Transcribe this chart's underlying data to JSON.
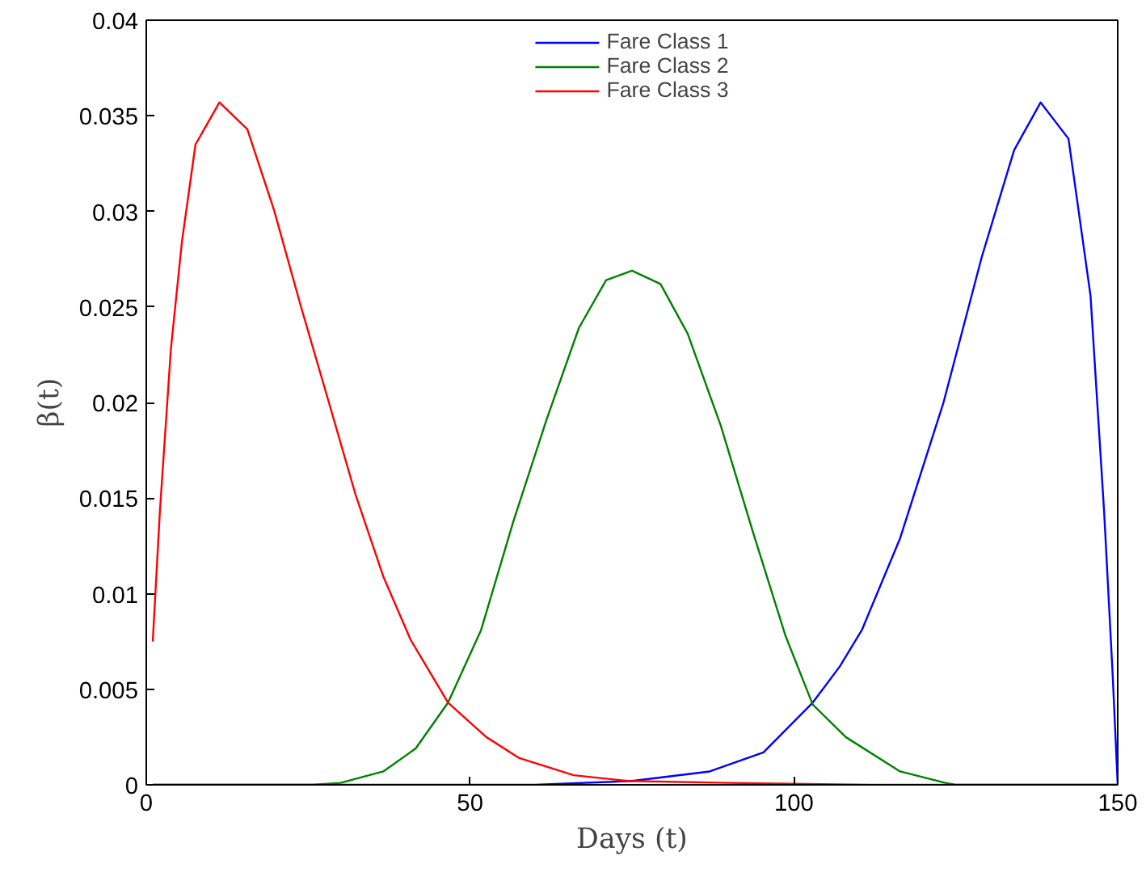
{
  "chart_data": {
    "type": "line",
    "xlabel": "Days (t)",
    "ylabel": "β(t)",
    "xlim": [
      0,
      150
    ],
    "ylim": [
      0,
      0.04
    ],
    "xticks": [
      0,
      50,
      100,
      150
    ],
    "yticks": [
      0,
      0.005,
      0.01,
      0.015,
      0.02,
      0.025,
      0.03,
      0.035,
      0.04
    ],
    "grid": false,
    "legend": "top",
    "marker": "none",
    "line_style": "solid",
    "series": [
      {
        "name": "Fare Class 1",
        "color": "#0000ff",
        "x": [
          1,
          40,
          60,
          75,
          87,
          95.3,
          102.9,
          107.1,
          110.5,
          116.4,
          123.1,
          129,
          134,
          138.1,
          142.4,
          145.8,
          147.9,
          149.2,
          150
        ],
        "values": [
          0,
          0,
          0,
          0.0002,
          0.0007,
          0.0017,
          0.0043,
          0.0062,
          0.0081,
          0.0129,
          0.02,
          0.0276,
          0.0332,
          0.0357,
          0.0338,
          0.0256,
          0.0143,
          0.0059,
          0
        ]
      },
      {
        "name": "Fare Class 2",
        "color": "#008000",
        "x": [
          1,
          25.6,
          30,
          36.6,
          41.6,
          46.6,
          51.7,
          56.7,
          61.8,
          66.8,
          71,
          75,
          79.4,
          83.6,
          88.7,
          93.7,
          98.7,
          102.9,
          108,
          116.4,
          123.4,
          125,
          150
        ],
        "values": [
          0,
          0,
          0.0001,
          0.0007,
          0.0019,
          0.0043,
          0.0081,
          0.0138,
          0.0191,
          0.0239,
          0.0264,
          0.0269,
          0.0262,
          0.0236,
          0.0188,
          0.0132,
          0.0078,
          0.0042,
          0.0025,
          0.0007,
          0.0001,
          0,
          0
        ]
      },
      {
        "name": "Fare Class 3",
        "color": "#ff0000",
        "x": [
          1,
          2.1,
          3.8,
          5.5,
          7.6,
          11.3,
          15.6,
          19.7,
          23.9,
          28.2,
          32.3,
          36.6,
          40.8,
          46.6,
          52.5,
          57.6,
          66,
          74.4,
          90,
          112,
          130,
          150
        ],
        "values": [
          0.0075,
          0.0143,
          0.0228,
          0.0284,
          0.0335,
          0.0357,
          0.0343,
          0.0301,
          0.025,
          0.02,
          0.0152,
          0.0109,
          0.0076,
          0.0043,
          0.0025,
          0.0014,
          0.0005,
          0.0002,
          0.0001,
          0,
          0,
          0
        ]
      }
    ]
  }
}
